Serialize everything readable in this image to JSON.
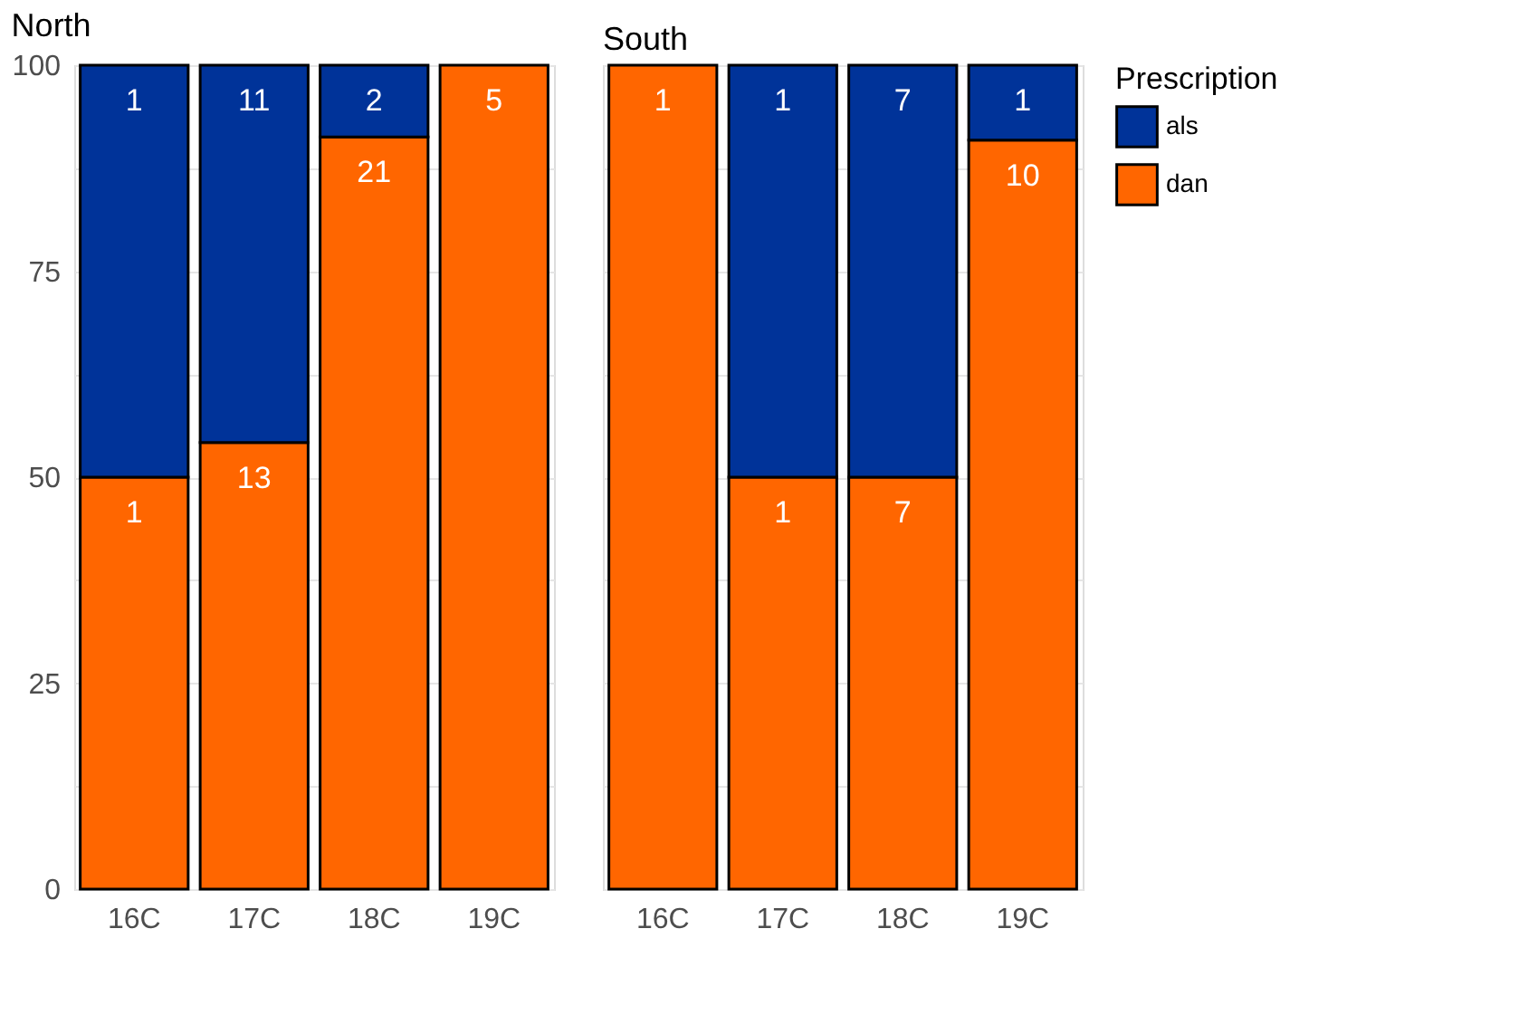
{
  "chart_data": [
    {
      "type": "bar",
      "title": "North",
      "categories": [
        "16C",
        "17C",
        "18C",
        "19C"
      ],
      "stacked": true,
      "series": [
        {
          "color": "#ff6600",
          "values": [
            50,
            54.2,
            91.3,
            100
          ]
        },
        {
          "color": "#003399",
          "values": [
            50,
            45.8,
            8.7,
            null
          ]
        }
      ],
      "annotations": [
        {
          "text": "1",
          "x": "16C",
          "y": 50
        },
        {
          "text": "13",
          "x": "17C",
          "y": 54.2
        },
        {
          "text": "21",
          "x": "18C",
          "y": 91.3
        },
        {
          "text": "5",
          "x": "19C",
          "y": 100
        },
        {
          "text": "1",
          "x": "16C",
          "y": 100
        },
        {
          "text": "11",
          "x": "17C",
          "y": 100
        },
        {
          "text": "2",
          "x": "18C",
          "y": 100
        }
      ],
      "ylim": [
        0,
        100
      ],
      "yticks": [
        0,
        {
          "value": 12.5,
          "label": null
        },
        25,
        {
          "value": 37.5,
          "label": null
        },
        50,
        {
          "value": 62.5,
          "label": null
        },
        75,
        {
          "value": 87.5,
          "label": null
        },
        100
      ],
      "grid": true
    },
    {
      "type": "bar",
      "title": "South",
      "categories": [
        "16C",
        "17C",
        "18C",
        "19C"
      ],
      "stacked": true,
      "series": [
        {
          "name": "dan",
          "color": "#ff6600",
          "values": [
            100,
            50,
            50,
            90.9
          ]
        },
        {
          "name": "als",
          "color": "#003399",
          "values": [
            null,
            50,
            50,
            9.1
          ]
        }
      ],
      "annotations": [
        {
          "text": "1",
          "x": "16C",
          "y": 100
        },
        {
          "text": "1",
          "x": "17C",
          "y": 50
        },
        {
          "text": "7",
          "x": "18C",
          "y": 50
        },
        {
          "text": "10",
          "x": "19C",
          "y": 90.9
        },
        {
          "text": "1",
          "x": "17C",
          "y": 100
        },
        {
          "text": "7",
          "x": "18C",
          "y": 100
        },
        {
          "text": "1",
          "x": "19C",
          "y": 100
        }
      ],
      "ylim": [
        0,
        100
      ],
      "yticks": [
        0,
        {
          "value": 12.5,
          "label": null
        },
        25,
        {
          "value": 37.5,
          "label": null
        },
        50,
        {
          "value": 62.5,
          "label": null
        },
        75,
        {
          "value": 87.5,
          "label": null
        },
        100
      ],
      "grid": true,
      "legend": "right",
      "legend_title": "Prescription",
      "tick_labels": "x"
    }
  ]
}
